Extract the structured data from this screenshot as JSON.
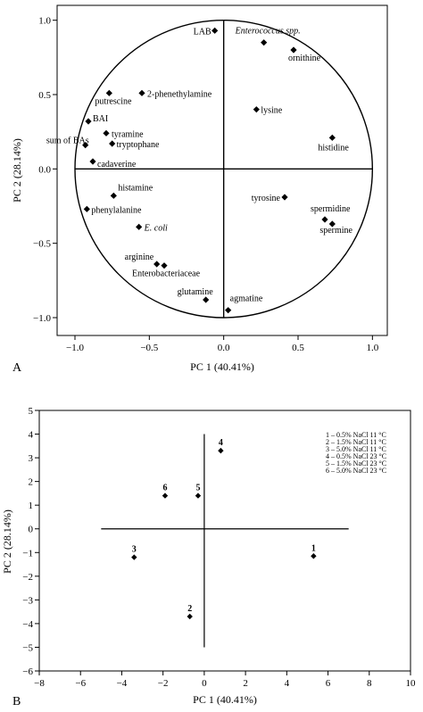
{
  "chart_data": [
    {
      "type": "scatter",
      "panel": "A",
      "xlabel": "PC 1 (40.41%)",
      "ylabel": "PC 2 (28.14%)",
      "xlim": [
        -1.12,
        1.1
      ],
      "ylim": [
        -1.12,
        1.1
      ],
      "x_ticks": [
        -1.0,
        -0.5,
        0.0,
        0.5,
        1.0
      ],
      "y_ticks": [
        1.0,
        0.5,
        0.0,
        -0.5,
        -1.0
      ],
      "x_tick_labels": [
        "−1.0",
        "−0.5",
        "0.0",
        "0.5",
        "1.0"
      ],
      "y_tick_labels": [
        "1.0",
        "0.5",
        "0.0",
        "−0.5",
        "−1.0"
      ],
      "unit_circle": true,
      "points": [
        {
          "label": "LAB",
          "x": -0.06,
          "y": 0.93
        },
        {
          "label": "Enterococcus spp.",
          "x": 0.27,
          "y": 0.85
        },
        {
          "label": "ornithine",
          "x": 0.47,
          "y": 0.8
        },
        {
          "label": "putrescine",
          "x": -0.77,
          "y": 0.51
        },
        {
          "label": "2-phenethylamine",
          "x": -0.55,
          "y": 0.51
        },
        {
          "label": "lysine",
          "x": 0.22,
          "y": 0.4
        },
        {
          "label": "BAI",
          "x": -0.91,
          "y": 0.32
        },
        {
          "label": "tyramine",
          "x": -0.79,
          "y": 0.24
        },
        {
          "label": "histidine",
          "x": 0.73,
          "y": 0.21
        },
        {
          "label": "sum of BAs",
          "x": -0.93,
          "y": 0.16
        },
        {
          "label": "tryptophane",
          "x": -0.75,
          "y": 0.17
        },
        {
          "label": "cadaverine",
          "x": -0.88,
          "y": 0.05
        },
        {
          "label": "histamine",
          "x": -0.74,
          "y": -0.18
        },
        {
          "label": "tyrosine",
          "x": 0.41,
          "y": -0.19
        },
        {
          "label": "phenylalanine",
          "x": -0.92,
          "y": -0.27
        },
        {
          "label": "E. coli",
          "x": -0.57,
          "y": -0.39
        },
        {
          "label": "spermidine",
          "x": 0.68,
          "y": -0.34
        },
        {
          "label": "spermine",
          "x": 0.73,
          "y": -0.37
        },
        {
          "label": "arginine",
          "x": -0.45,
          "y": -0.64
        },
        {
          "label": "Enterobacteriaceae",
          "x": -0.4,
          "y": -0.65
        },
        {
          "label": "glutamine",
          "x": -0.12,
          "y": -0.88
        },
        {
          "label": "agmatine",
          "x": 0.03,
          "y": -0.95
        }
      ]
    },
    {
      "type": "scatter",
      "panel": "B",
      "xlabel": "PC 1 (40.41%)",
      "ylabel": "PC 2 (28.14%)",
      "xlim": [
        -8,
        10
      ],
      "ylim": [
        -6,
        5
      ],
      "x_ticks": [
        -8,
        -6,
        -4,
        -2,
        0,
        2,
        4,
        6,
        8,
        10
      ],
      "y_ticks": [
        5,
        4,
        3,
        2,
        1,
        0,
        -1,
        -2,
        -3,
        -4,
        -5,
        -6
      ],
      "x_tick_labels": [
        "−8",
        "−6",
        "−4",
        "−2",
        "0",
        "2",
        "4",
        "6",
        "8",
        "10"
      ],
      "y_tick_labels": [
        "5",
        "4",
        "3",
        "2",
        "1",
        "0",
        "−1",
        "−2",
        "−3",
        "−4",
        "−5",
        "−6"
      ],
      "points": [
        {
          "label": "1",
          "x": 5.3,
          "y": -1.15
        },
        {
          "label": "2",
          "x": -0.7,
          "y": -3.7
        },
        {
          "label": "3",
          "x": -3.4,
          "y": -1.2
        },
        {
          "label": "4",
          "x": 0.8,
          "y": 3.3
        },
        {
          "label": "5",
          "x": -0.3,
          "y": 1.4
        },
        {
          "label": "6",
          "x": -1.9,
          "y": 1.4
        }
      ],
      "legend": {
        "placement": "top-right",
        "entries": [
          "1 – 0.5% NaCl 11 °C",
          "2 – 1.5% NaCl 11 °C",
          "3 – 5.0% NaCl 11 °C",
          "4 – 0.5% NaCl 23 °C",
          "5 – 1.5% NaCl 23 °C",
          "6 – 5.0% NaCl 23 °C"
        ]
      }
    }
  ]
}
